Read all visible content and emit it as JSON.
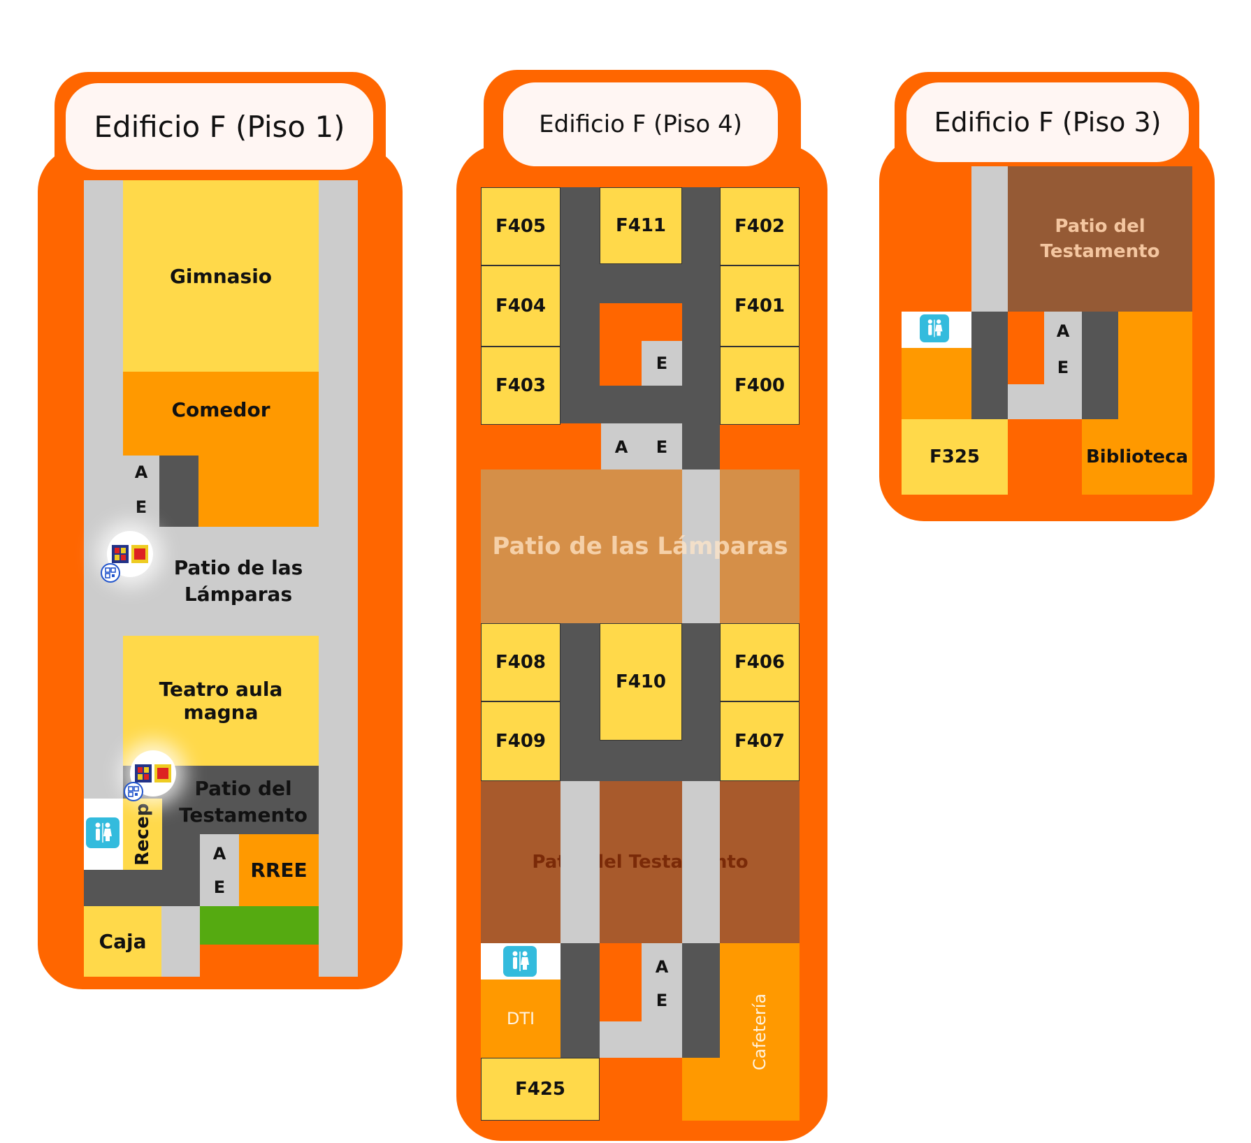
{
  "buildings": {
    "floor1": {
      "title": "Edificio F (Piso 1)",
      "rooms": {
        "gimnasio": "Gimnasio",
        "comedor": "Comedor",
        "patio_lamparas": "Patio de las Lámparas",
        "teatro": "Teatro aula magna",
        "patio_testamento": "Patio del Testamento",
        "recep": "Recep",
        "rree": "RREE",
        "caja": "Caja"
      },
      "elevator_a": "A",
      "elevator_e": "E"
    },
    "floor4": {
      "title": "Edificio F (Piso 4)",
      "rooms": {
        "f405": "F405",
        "f411": "F411",
        "f402": "F402",
        "f404": "F404",
        "f401": "F401",
        "f403": "F403",
        "f400": "F400",
        "patio_lamparas": "Patio de las Lámparas",
        "f408": "F408",
        "f410": "F410",
        "f406": "F406",
        "f409": "F409",
        "f407": "F407",
        "patio_testamento": "Patio del Testamento",
        "dti": "DTI",
        "cafeteria": "Cafetería",
        "f425": "F425"
      },
      "elevator_a": "A",
      "elevator_e": "E"
    },
    "floor3": {
      "title": "Edificio F (Piso 3)",
      "rooms": {
        "patio_testamento": "Patio del Testamento",
        "f325": "F325",
        "biblioteca": "Biblioteca"
      },
      "elevator_a": "A",
      "elevator_e": "E"
    }
  },
  "colors": {
    "panel": "#ff6600",
    "room_yellow": "#ffd94a",
    "room_orange": "#ff9900",
    "corridor_light": "#cccccc",
    "corridor_dark": "#555555",
    "patio_brown": "#a85a2c",
    "patio_tan": "#d58f48",
    "green_area": "#55aa11",
    "restroom": "#33bbdd"
  },
  "icons": [
    "restroom-icon",
    "university-logo-icon",
    "qr-code-icon"
  ]
}
